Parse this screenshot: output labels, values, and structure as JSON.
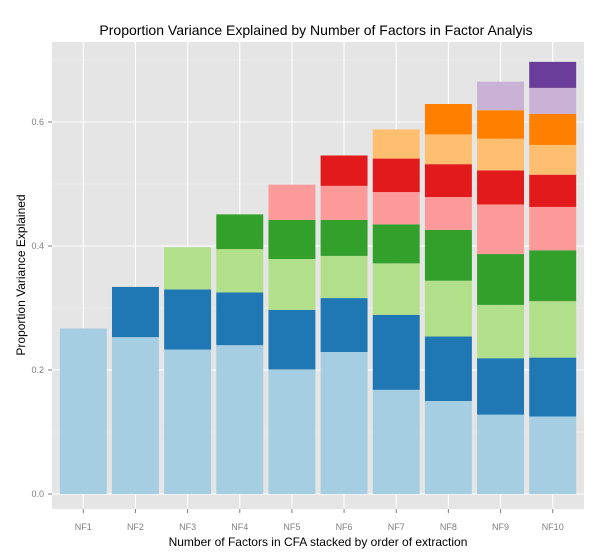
{
  "chart_data": {
    "type": "bar",
    "stacked": true,
    "title": "Proportion Variance Explained by Number of Factors in Factor Analyis",
    "xlabel": "Number of Factors in CFA stacked by order of extraction",
    "ylabel": "Proportion Variance Explained",
    "categories": [
      "NF1",
      "NF2",
      "NF3",
      "NF4",
      "NF5",
      "NF6",
      "NF7",
      "NF8",
      "NF9",
      "NF10"
    ],
    "ylim": [
      0,
      0.72
    ],
    "yticks": [
      0.0,
      0.2,
      0.4,
      0.6
    ],
    "ytick_labels": [
      "0.0",
      "0.2",
      "0.4",
      "0.6"
    ],
    "grid": true,
    "legend": "none",
    "panel_background": "#e5e5e5",
    "factor_colors": [
      "#a6cee3",
      "#1f78b4",
      "#b2df8a",
      "#33a02c",
      "#fb9a99",
      "#e31a1c",
      "#fdbf6f",
      "#ff7f00",
      "#cab2d6",
      "#6a3d9a"
    ],
    "values": [
      [
        0.267
      ],
      [
        0.253,
        0.081
      ],
      [
        0.233,
        0.097,
        0.068
      ],
      [
        0.24,
        0.085,
        0.07,
        0.056
      ],
      [
        0.201,
        0.096,
        0.082,
        0.063,
        0.057
      ],
      [
        0.229,
        0.087,
        0.068,
        0.058,
        0.055,
        0.049
      ],
      [
        0.168,
        0.121,
        0.083,
        0.063,
        0.052,
        0.054,
        0.047
      ],
      [
        0.15,
        0.104,
        0.09,
        0.082,
        0.053,
        0.053,
        0.048,
        0.049
      ],
      [
        0.128,
        0.091,
        0.086,
        0.082,
        0.08,
        0.055,
        0.051,
        0.046,
        0.046
      ],
      [
        0.125,
        0.095,
        0.091,
        0.082,
        0.07,
        0.052,
        0.048,
        0.05,
        0.042,
        0.042
      ]
    ]
  }
}
